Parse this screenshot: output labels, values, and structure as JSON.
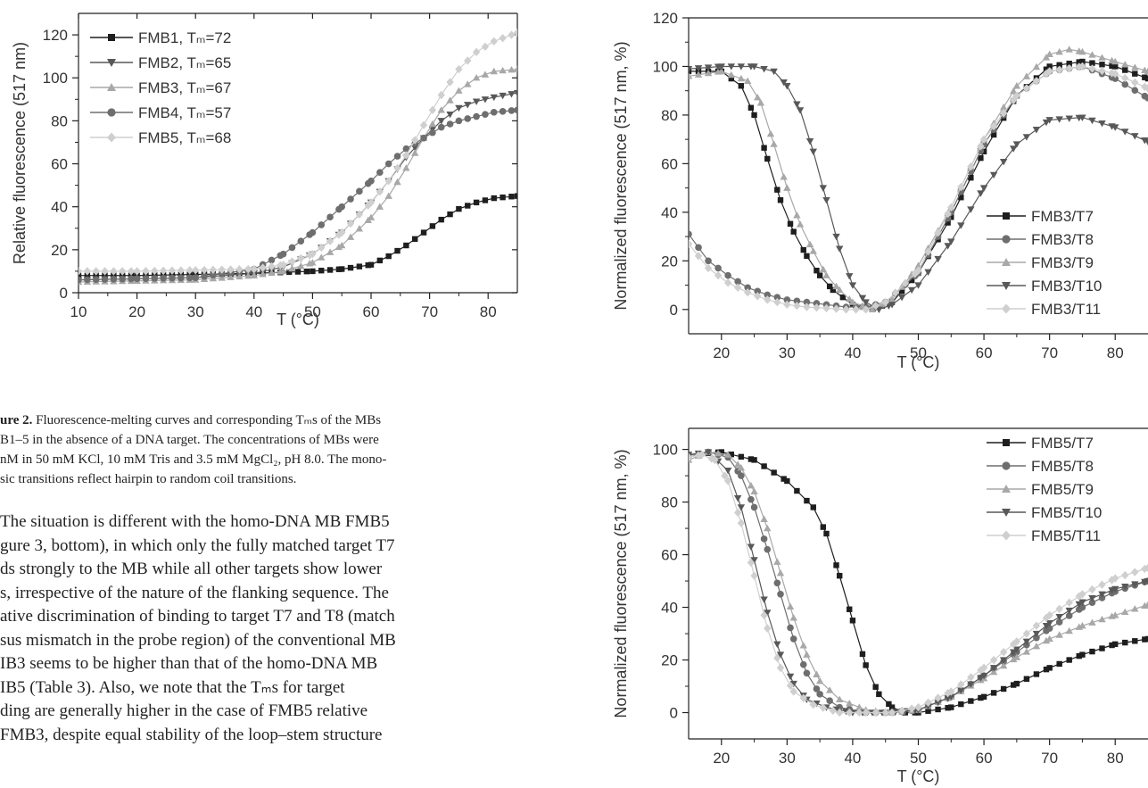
{
  "figure2_caption": {
    "label": "ure 2.",
    "lines": [
      " Fluorescence-melting curves and corresponding Tₘs of the MBs",
      "B1–5 in the absence of a DNA target. The concentrations of MBs were",
      "nM in 50 mM KCl, 10 mM Tris and 3.5 mM MgCl₂, pH 8.0. The mono-",
      "sic transitions reflect hairpin to random coil transitions."
    ]
  },
  "body_text": {
    "lines": [
      "The situation is different with the homo-DNA MB FMB5",
      "gure 3, bottom), in which only the fully matched target T7",
      "ds strongly to the MB while all other targets show lower",
      "s, irrespective of the nature of the flanking sequence. The",
      "ative discrimination of binding to target T7 and T8 (match",
      "sus mismatch in the probe region) of the conventional MB",
      "IB3 seems to be higher than that of the homo-DNA MB",
      "IB5 (Table 3). Also, we note that the Tₘs for target",
      "ding are generally higher in the case of FMB5 relative",
      "FMB3, despite equal stability of the loop–stem structure"
    ]
  },
  "chart_data": [
    {
      "type": "line",
      "xlabel": "T (°C)",
      "ylabel": "Relative fluorescence (517 nm)",
      "xlim": [
        10,
        85
      ],
      "ylim": [
        0,
        130
      ],
      "xticks": [
        10,
        20,
        30,
        40,
        50,
        60,
        70,
        80
      ],
      "yticks": [
        0,
        20,
        40,
        60,
        80,
        100,
        120
      ],
      "legend_position": "top-left",
      "series": [
        {
          "name": "FMB1, Tₘ=72",
          "color": "#1e1e1e",
          "marker": "square",
          "x": [
            10,
            20,
            30,
            40,
            50,
            55,
            60,
            63,
            66,
            69,
            72,
            75,
            78,
            81,
            85
          ],
          "y": [
            8,
            8,
            8.5,
            9,
            10,
            11,
            13,
            17,
            22,
            28,
            34,
            39,
            42,
            44,
            45
          ]
        },
        {
          "name": "FMB2, Tₘ=65",
          "color": "#585858",
          "marker": "triangle-down",
          "x": [
            10,
            20,
            30,
            40,
            45,
            50,
            55,
            60,
            63,
            66,
            69,
            72,
            75,
            78,
            81,
            85
          ],
          "y": [
            6,
            6.5,
            7,
            9,
            12,
            18,
            28,
            42,
            52,
            63,
            72,
            80,
            86,
            89,
            91,
            93
          ]
        },
        {
          "name": "FMB3, Tₘ=67",
          "color": "#a8a8a8",
          "marker": "triangle-up",
          "x": [
            10,
            20,
            30,
            40,
            45,
            50,
            55,
            60,
            63,
            66,
            69,
            72,
            75,
            78,
            81,
            85
          ],
          "y": [
            5,
            5.5,
            6,
            8,
            10,
            14,
            22,
            35,
            45,
            58,
            72,
            85,
            94,
            100,
            103,
            104
          ]
        },
        {
          "name": "FMB4, Tₘ=57",
          "color": "#6e6e6e",
          "marker": "circle",
          "x": [
            10,
            20,
            30,
            40,
            45,
            50,
            55,
            60,
            63,
            66,
            69,
            72,
            75,
            78,
            81,
            85
          ],
          "y": [
            6,
            6.5,
            7,
            11,
            18,
            28,
            40,
            52,
            60,
            67,
            72,
            77,
            80,
            82,
            84,
            85
          ]
        },
        {
          "name": "FMB5, Tₘ=68",
          "color": "#cfcfcf",
          "marker": "diamond",
          "x": [
            10,
            20,
            30,
            40,
            45,
            50,
            55,
            60,
            63,
            66,
            69,
            72,
            75,
            78,
            81,
            85
          ],
          "y": [
            10,
            10,
            10.5,
            11,
            13,
            18,
            28,
            42,
            52,
            64,
            78,
            92,
            104,
            112,
            117,
            121
          ]
        }
      ]
    },
    {
      "type": "line",
      "xlabel": "T (°C)",
      "ylabel": "Normalized fluorescence (517 nm, %)",
      "xlim": [
        15,
        85
      ],
      "ylim": [
        -10,
        120
      ],
      "xticks": [
        20,
        30,
        40,
        50,
        60,
        70,
        80
      ],
      "yticks": [
        0,
        20,
        40,
        60,
        80,
        100,
        120
      ],
      "legend_position": "bottom-right",
      "series": [
        {
          "name": "FMB3/T7",
          "color": "#1e1e1e",
          "marker": "square",
          "x": [
            15,
            20,
            23,
            25,
            27,
            29,
            31,
            33,
            35,
            37,
            40,
            43,
            46,
            50,
            55,
            60,
            65,
            70,
            75,
            80,
            85
          ],
          "y": [
            98,
            98,
            92,
            80,
            62,
            45,
            32,
            22,
            14,
            8,
            2,
            0,
            3,
            15,
            38,
            65,
            88,
            100,
            102,
            100,
            95
          ]
        },
        {
          "name": "FMB3/T8",
          "color": "#6e6e6e",
          "marker": "circle",
          "x": [
            15,
            18,
            21,
            24,
            27,
            30,
            33,
            36,
            39,
            42,
            45,
            50,
            55,
            60,
            65,
            70,
            75,
            80,
            85
          ],
          "y": [
            31,
            20,
            14,
            9,
            6,
            4,
            3,
            2,
            1,
            1,
            3,
            15,
            40,
            68,
            88,
            98,
            100,
            95,
            87
          ]
        },
        {
          "name": "FMB3/T9",
          "color": "#a8a8a8",
          "marker": "triangle-up",
          "x": [
            15,
            20,
            24,
            26,
            28,
            30,
            32,
            34,
            36,
            38,
            40,
            43,
            46,
            50,
            55,
            60,
            65,
            70,
            73,
            75,
            80,
            85
          ],
          "y": [
            96,
            98,
            94,
            85,
            68,
            50,
            35,
            24,
            14,
            8,
            3,
            0,
            4,
            18,
            42,
            70,
            92,
            105,
            107,
            106,
            102,
            98
          ]
        },
        {
          "name": "FMB3/T10",
          "color": "#585858",
          "marker": "triangle-down",
          "x": [
            15,
            20,
            25,
            28,
            30,
            32,
            34,
            36,
            38,
            40,
            42,
            44,
            46,
            50,
            55,
            60,
            65,
            70,
            75,
            80,
            85
          ],
          "y": [
            99,
            100,
            100,
            98,
            92,
            82,
            65,
            45,
            25,
            10,
            3,
            0,
            2,
            10,
            28,
            50,
            68,
            78,
            79,
            75,
            69
          ]
        },
        {
          "name": "FMB3/T11",
          "color": "#cfcfcf",
          "marker": "diamond",
          "x": [
            15,
            18,
            21,
            24,
            27,
            30,
            33,
            36,
            39,
            42,
            45,
            50,
            55,
            60,
            65,
            70,
            75,
            80,
            85
          ],
          "y": [
            27,
            17,
            11,
            7,
            4,
            2,
            1,
            0.5,
            0,
            0,
            3,
            16,
            42,
            70,
            88,
            98,
            100,
            97,
            91
          ]
        }
      ]
    },
    {
      "type": "line",
      "xlabel": "T (°C)",
      "ylabel": "Normalized fluorescence (517 nm, %)",
      "xlim": [
        15,
        85
      ],
      "ylim": [
        -10,
        108
      ],
      "xticks": [
        20,
        30,
        40,
        50,
        60,
        70,
        80
      ],
      "yticks": [
        0,
        20,
        40,
        60,
        80,
        100
      ],
      "legend_position": "top-right",
      "series": [
        {
          "name": "FMB5/T7",
          "color": "#1e1e1e",
          "marker": "square",
          "x": [
            15,
            20,
            25,
            30,
            34,
            36,
            38,
            40,
            42,
            44,
            46,
            48,
            50,
            55,
            60,
            65,
            70,
            75,
            80,
            85
          ],
          "y": [
            98,
            99,
            96,
            88,
            78,
            68,
            52,
            35,
            18,
            7,
            2,
            0,
            0,
            2,
            6,
            11,
            17,
            22,
            26,
            28
          ]
        },
        {
          "name": "FMB5/T8",
          "color": "#6e6e6e",
          "marker": "circle",
          "x": [
            15,
            18,
            21,
            23,
            25,
            27,
            29,
            31,
            33,
            35,
            38,
            42,
            46,
            50,
            55,
            60,
            65,
            70,
            75,
            80,
            85
          ],
          "y": [
            97,
            99,
            97,
            90,
            78,
            62,
            45,
            28,
            15,
            7,
            2,
            0,
            0,
            1,
            6,
            14,
            23,
            32,
            40,
            46,
            50
          ]
        },
        {
          "name": "FMB5/T9",
          "color": "#a8a8a8",
          "marker": "triangle-up",
          "x": [
            15,
            18,
            21,
            23,
            25,
            27,
            29,
            31,
            33,
            35,
            38,
            42,
            46,
            50,
            55,
            60,
            65,
            70,
            75,
            80,
            85
          ],
          "y": [
            96,
            99,
            98,
            93,
            84,
            70,
            53,
            36,
            22,
            12,
            5,
            1,
            0,
            1,
            6,
            13,
            21,
            28,
            33,
            37,
            41
          ]
        },
        {
          "name": "FMB5/T10",
          "color": "#585858",
          "marker": "triangle-down",
          "x": [
            15,
            18,
            21,
            23,
            25,
            27,
            29,
            31,
            33,
            36,
            40,
            45,
            50,
            55,
            60,
            65,
            70,
            75,
            80,
            85
          ],
          "y": [
            98,
            99,
            92,
            78,
            58,
            38,
            22,
            11,
            5,
            2,
            0,
            0,
            1,
            6,
            14,
            24,
            34,
            42,
            47,
            50
          ]
        },
        {
          "name": "FMB5/T11",
          "color": "#cfcfcf",
          "marker": "diamond",
          "x": [
            15,
            17,
            19,
            21,
            23,
            25,
            27,
            29,
            31,
            34,
            38,
            42,
            46,
            50,
            55,
            60,
            65,
            70,
            75,
            80,
            85
          ],
          "y": [
            97,
            98,
            96,
            88,
            72,
            52,
            32,
            17,
            8,
            3,
            0,
            0,
            0,
            2,
            8,
            17,
            27,
            37,
            45,
            51,
            55
          ]
        }
      ]
    }
  ]
}
